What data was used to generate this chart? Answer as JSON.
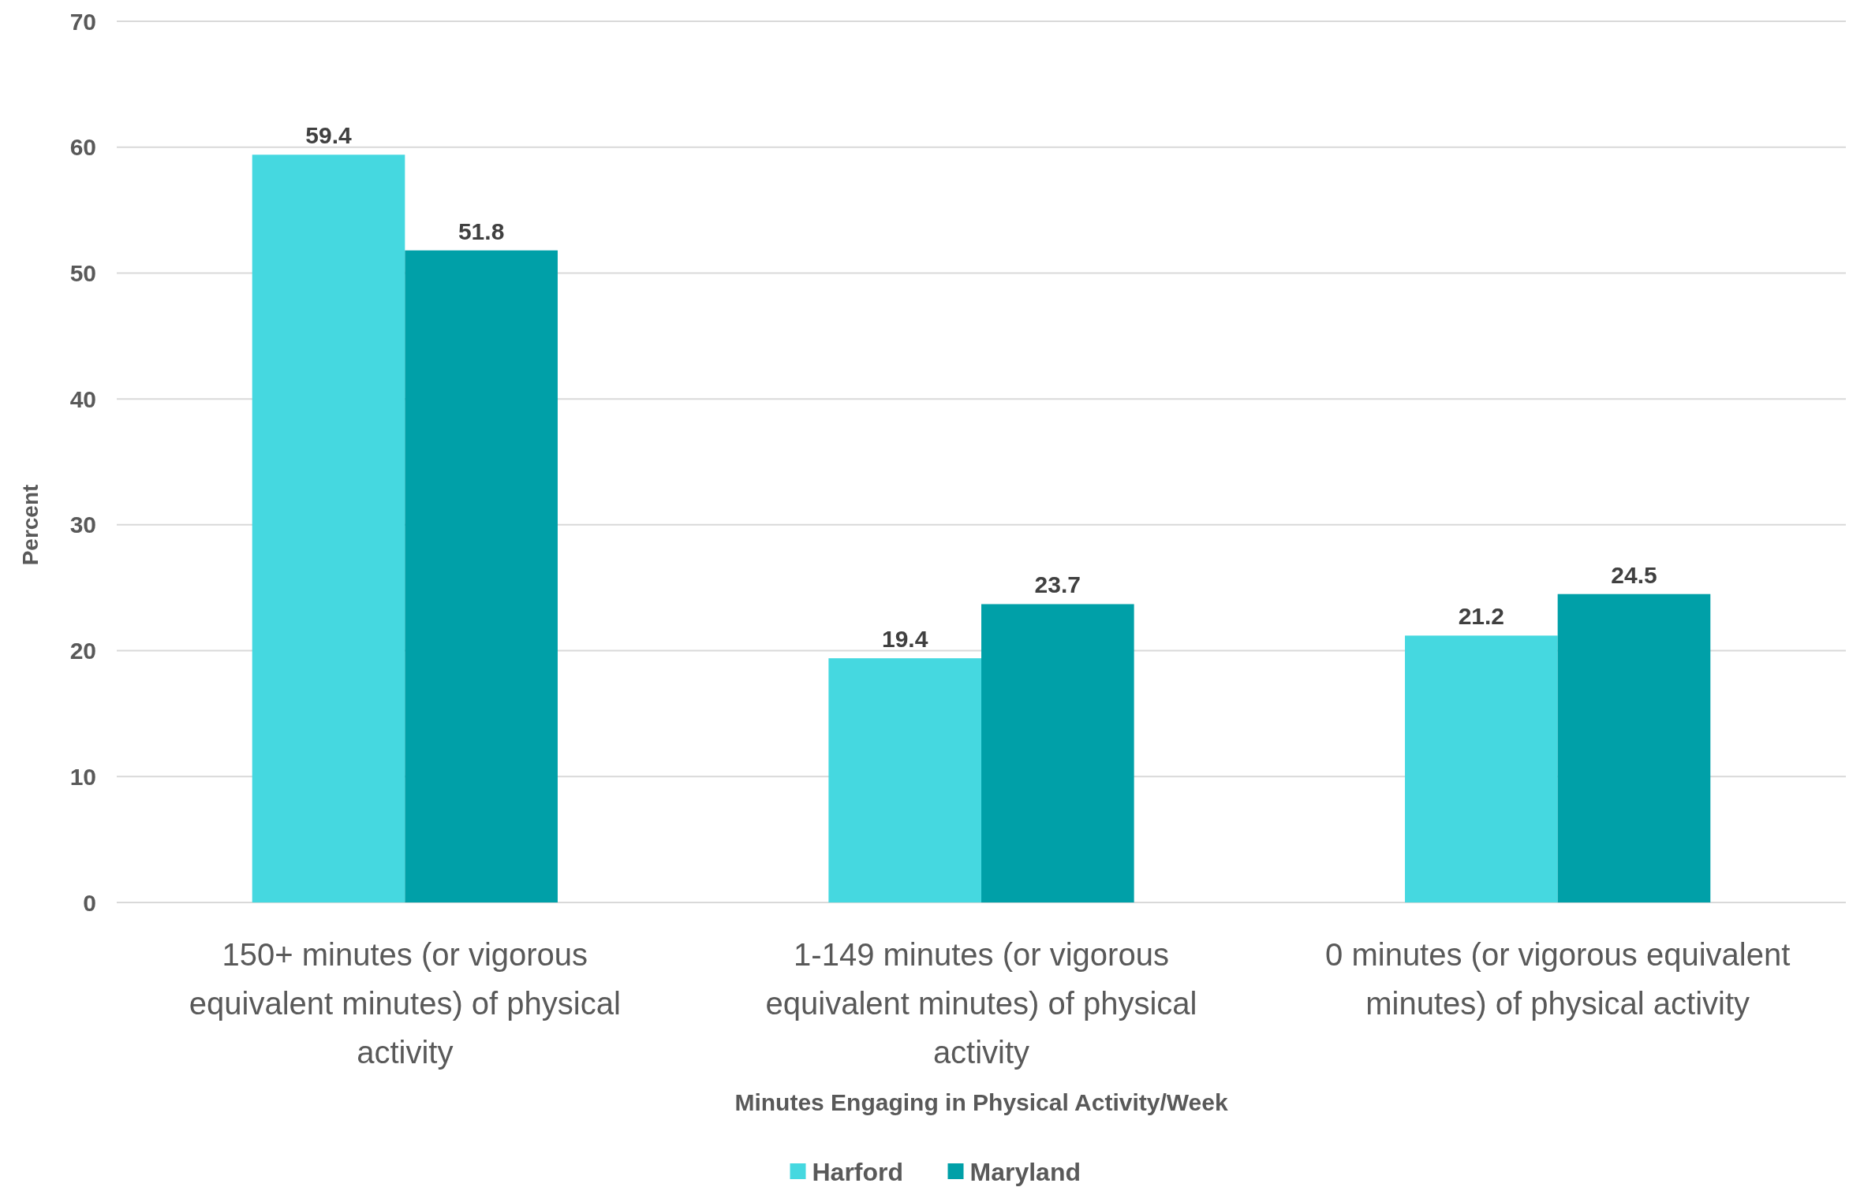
{
  "chart_data": {
    "type": "bar",
    "xlabel": "Minutes Engaging in Physical Activity/Week",
    "ylabel": "Percent",
    "categories": [
      "150+ minutes (or vigorous equivalent minutes) of physical activity",
      "1-149 minutes (or vigorous equivalent minutes) of physical activity",
      "0 minutes (or vigorous equivalent minutes) of physical activity"
    ],
    "series": [
      {
        "name": "Harford",
        "color": "#45d8e0",
        "values": [
          59.4,
          19.4,
          21.2
        ]
      },
      {
        "name": "Maryland",
        "color": "#00a0a8",
        "values": [
          51.8,
          23.7,
          24.5
        ]
      }
    ],
    "ylim": [
      0,
      70
    ],
    "yticks": [
      0,
      10,
      20,
      30,
      40,
      50,
      60,
      70
    ],
    "grid": "y",
    "legend": "bottom",
    "data_labels": true
  }
}
